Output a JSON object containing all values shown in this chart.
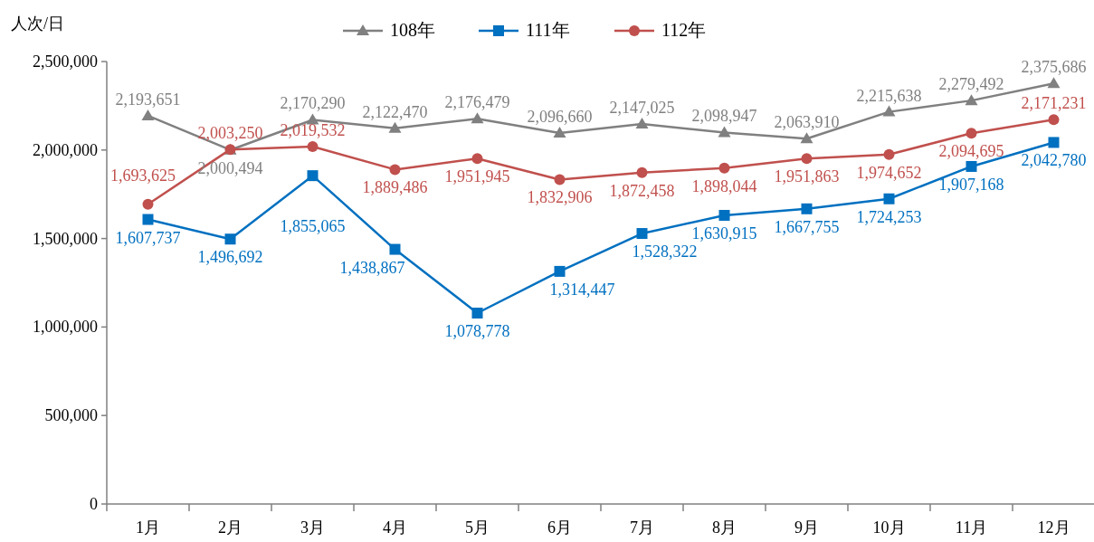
{
  "chart_data": {
    "type": "line",
    "ylabel": "人次/日",
    "categories": [
      "1月",
      "2月",
      "3月",
      "4月",
      "5月",
      "6月",
      "7月",
      "8月",
      "9月",
      "10月",
      "11月",
      "12月"
    ],
    "series": [
      {
        "name": "108年",
        "color": "#808080",
        "marker": "triangle",
        "values": [
          2193651,
          2000494,
          2170290,
          2122470,
          2176479,
          2096660,
          2147025,
          2098947,
          2063910,
          2215638,
          2279492,
          2375686
        ],
        "value_labels": [
          "2,193,651",
          "2,000,494",
          "2,170,290",
          "2,122,470",
          "2,176,479",
          "2,096,660",
          "2,147,025",
          "2,098,947",
          "2,063,910",
          "2,215,638",
          "2,279,492",
          "2,375,686"
        ]
      },
      {
        "name": "111年",
        "color": "#0070c0",
        "marker": "square",
        "values": [
          1607737,
          1496692,
          1855065,
          1438867,
          1078778,
          1314447,
          1528322,
          1630915,
          1667755,
          1724253,
          1907168,
          2042780
        ],
        "value_labels": [
          "1,607,737",
          "1,496,692",
          "1,855,065",
          "1,438,867",
          "1,078,778",
          "1,314,447",
          "1,528,322",
          "1,630,915",
          "1,667,755",
          "1,724,253",
          "1,907,168",
          "2,042,780"
        ]
      },
      {
        "name": "112年",
        "color": "#c0504d",
        "marker": "circle",
        "values": [
          1693625,
          2003250,
          2019532,
          1889486,
          1951945,
          1832906,
          1872458,
          1898044,
          1951863,
          1974652,
          2094695,
          2171231
        ],
        "value_labels": [
          "1,693,625",
          "2,003,250",
          "2,019,532",
          "1,889,486",
          "1,951,945",
          "1,832,906",
          "1,872,458",
          "1,898,044",
          "1,951,863",
          "1,974,652",
          "2,094,695",
          "2,171,231"
        ]
      }
    ],
    "ylim": [
      0,
      2500000
    ],
    "yticks": [
      {
        "value": 0,
        "label": "0"
      },
      {
        "value": 500000,
        "label": "500,000"
      },
      {
        "value": 1000000,
        "label": "1,000,000"
      },
      {
        "value": 1500000,
        "label": "1,500,000"
      },
      {
        "value": 2000000,
        "label": "2,000,000"
      },
      {
        "value": 2500000,
        "label": "2,500,000"
      }
    ],
    "legend": "top",
    "grid": false,
    "line_style": "solid"
  }
}
